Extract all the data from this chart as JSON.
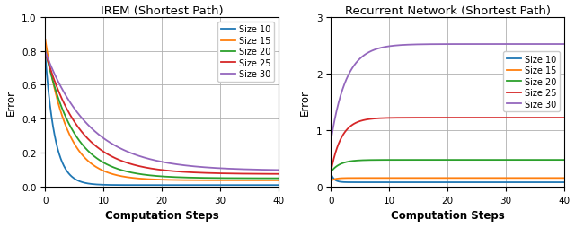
{
  "title_left": "IREM (Shortest Path)",
  "title_right": "Recurrent Network (Shortest Path)",
  "xlabel": "Computation Steps",
  "ylabel": "Error",
  "x_max": 40,
  "left_ylim": [
    0.0,
    1.0
  ],
  "right_ylim": [
    0.0,
    3.0
  ],
  "colors": [
    "#1f77b4",
    "#ff7f0e",
    "#2ca02c",
    "#d62728",
    "#9467bd"
  ],
  "legend_labels": [
    "Size 10",
    "Size 15",
    "Size 20",
    "Size 25",
    "Size 30"
  ],
  "background_color": "#ffffff",
  "grid_color": "#b0b0b0"
}
